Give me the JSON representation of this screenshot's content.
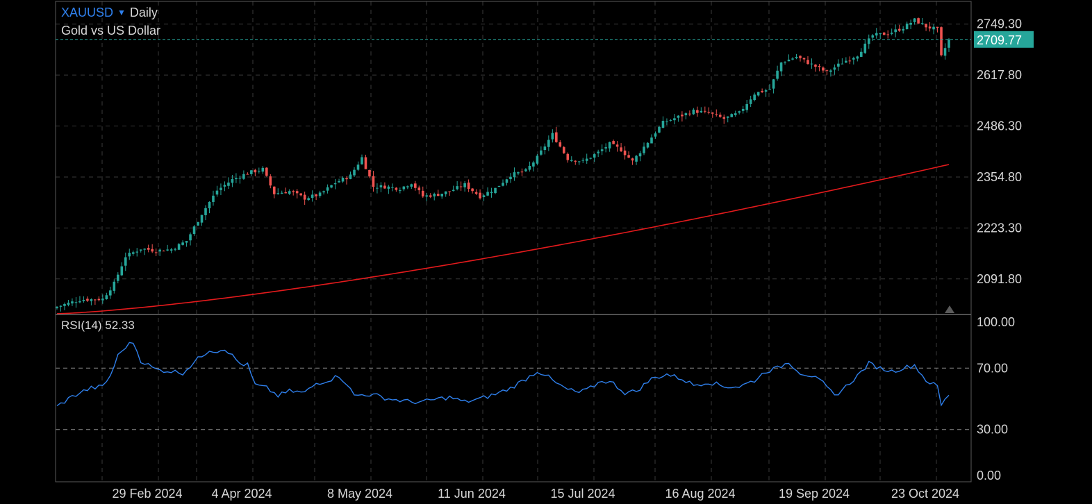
{
  "header": {
    "symbol": "XAUUSD",
    "timeframe": "Daily",
    "description": "Gold vs US Dollar"
  },
  "rsi": {
    "label": "RSI(14) 52.33",
    "ticks": [
      "100.00",
      "70.00",
      "30.00",
      "0.00"
    ]
  },
  "colors": {
    "background": "#000000",
    "up": "#26a69a",
    "down": "#ef5350",
    "ma": "#e31a1c",
    "rsi": "#2f80ed",
    "grid": "#3a3a3a",
    "last_price": "#26a69a"
  },
  "chart_data": [
    {
      "type": "candlestick",
      "series": [
        {
          "name": "XAUUSD",
          "kind": "ohlc",
          "start_close": 2020,
          "end_close": 2709.77
        },
        {
          "name": "MA",
          "kind": "line",
          "start": 2002,
          "end": 2387
        }
      ],
      "ylim": [
        2000,
        2790
      ],
      "y_ticks": [
        "2749.30",
        "2617.80",
        "2486.30",
        "2354.80",
        "2223.30",
        "2091.80"
      ],
      "last_price_label": "2709.77",
      "last_price": 2709.77,
      "x_tick_labels": [
        "29 Feb 2024",
        "4 Apr 2024",
        "8 May 2024",
        "11 Jun 2024",
        "15 Jul 2024",
        "16 Aug 2024",
        "19 Sep 2024",
        "23 Oct 2024"
      ],
      "anchors": [
        [
          0,
          2020
        ],
        [
          6,
          2038
        ],
        [
          12,
          2040
        ],
        [
          15,
          2080
        ],
        [
          18,
          2150
        ],
        [
          22,
          2170
        ],
        [
          26,
          2165
        ],
        [
          30,
          2168
        ],
        [
          34,
          2190
        ],
        [
          38,
          2260
        ],
        [
          42,
          2320
        ],
        [
          46,
          2348
        ],
        [
          50,
          2365
        ],
        [
          54,
          2375
        ],
        [
          57,
          2312
        ],
        [
          61,
          2318
        ],
        [
          65,
          2300
        ],
        [
          69,
          2310
        ],
        [
          73,
          2340
        ],
        [
          77,
          2358
        ],
        [
          80,
          2405
        ],
        [
          83,
          2330
        ],
        [
          86,
          2330
        ],
        [
          90,
          2325
        ],
        [
          93,
          2340
        ],
        [
          96,
          2305
        ],
        [
          100,
          2310
        ],
        [
          103,
          2318
        ],
        [
          107,
          2335
        ],
        [
          111,
          2305
        ],
        [
          115,
          2325
        ],
        [
          119,
          2360
        ],
        [
          123,
          2370
        ],
        [
          126,
          2405
        ],
        [
          130,
          2465
        ],
        [
          134,
          2402
        ],
        [
          138,
          2395
        ],
        [
          142,
          2418
        ],
        [
          145,
          2440
        ],
        [
          148,
          2425
        ],
        [
          151,
          2395
        ],
        [
          155,
          2445
        ],
        [
          159,
          2495
        ],
        [
          163,
          2510
        ],
        [
          167,
          2525
        ],
        [
          171,
          2520
        ],
        [
          175,
          2505
        ],
        [
          179,
          2520
        ],
        [
          183,
          2570
        ],
        [
          187,
          2582
        ],
        [
          190,
          2650
        ],
        [
          194,
          2665
        ],
        [
          198,
          2645
        ],
        [
          202,
          2625
        ],
        [
          206,
          2650
        ],
        [
          210,
          2670
        ],
        [
          214,
          2720
        ],
        [
          218,
          2725
        ],
        [
          222,
          2740
        ],
        [
          225,
          2760
        ],
        [
          228,
          2743
        ],
        [
          231,
          2735
        ],
        [
          232,
          2665
        ],
        [
          234,
          2709.77
        ]
      ]
    },
    {
      "type": "line",
      "series": [
        {
          "name": "RSI(14)"
        }
      ],
      "ylim": [
        0,
        100
      ],
      "y_ticks": [
        100,
        70,
        30,
        0
      ],
      "anchors": [
        [
          0,
          45
        ],
        [
          3,
          50
        ],
        [
          6,
          54
        ],
        [
          9,
          57
        ],
        [
          12,
          58
        ],
        [
          14,
          65
        ],
        [
          16,
          78
        ],
        [
          18,
          84
        ],
        [
          20,
          87
        ],
        [
          22,
          75
        ],
        [
          26,
          69
        ],
        [
          30,
          68
        ],
        [
          33,
          67
        ],
        [
          37,
          76
        ],
        [
          40,
          82
        ],
        [
          42,
          81
        ],
        [
          44,
          83
        ],
        [
          46,
          78
        ],
        [
          48,
          73
        ],
        [
          50,
          72
        ],
        [
          52,
          59
        ],
        [
          55,
          57
        ],
        [
          58,
          52
        ],
        [
          61,
          55
        ],
        [
          65,
          54
        ],
        [
          68,
          60
        ],
        [
          71,
          62
        ],
        [
          74,
          65
        ],
        [
          76,
          60
        ],
        [
          78,
          52
        ],
        [
          81,
          53
        ],
        [
          84,
          52
        ],
        [
          87,
          50
        ],
        [
          90,
          49
        ],
        [
          93,
          48
        ],
        [
          96,
          48
        ],
        [
          100,
          50
        ],
        [
          103,
          51
        ],
        [
          107,
          48
        ],
        [
          111,
          50
        ],
        [
          115,
          53
        ],
        [
          119,
          57
        ],
        [
          123,
          63
        ],
        [
          126,
          68
        ],
        [
          128,
          66
        ],
        [
          131,
          60
        ],
        [
          134,
          56
        ],
        [
          137,
          54
        ],
        [
          140,
          57
        ],
        [
          143,
          62
        ],
        [
          146,
          60
        ],
        [
          149,
          54
        ],
        [
          152,
          55
        ],
        [
          156,
          63
        ],
        [
          160,
          66
        ],
        [
          164,
          63
        ],
        [
          167,
          59
        ],
        [
          171,
          61
        ],
        [
          175,
          58
        ],
        [
          179,
          58
        ],
        [
          183,
          62
        ],
        [
          186,
          68
        ],
        [
          189,
          70
        ],
        [
          192,
          74
        ],
        [
          195,
          67
        ],
        [
          198,
          65
        ],
        [
          201,
          60
        ],
        [
          204,
          52
        ],
        [
          207,
          58
        ],
        [
          210,
          65
        ],
        [
          213,
          73
        ],
        [
          216,
          70
        ],
        [
          219,
          68
        ],
        [
          222,
          70
        ],
        [
          225,
          72
        ],
        [
          228,
          62
        ],
        [
          231,
          58
        ],
        [
          232,
          46
        ],
        [
          234,
          52.33
        ]
      ]
    }
  ]
}
